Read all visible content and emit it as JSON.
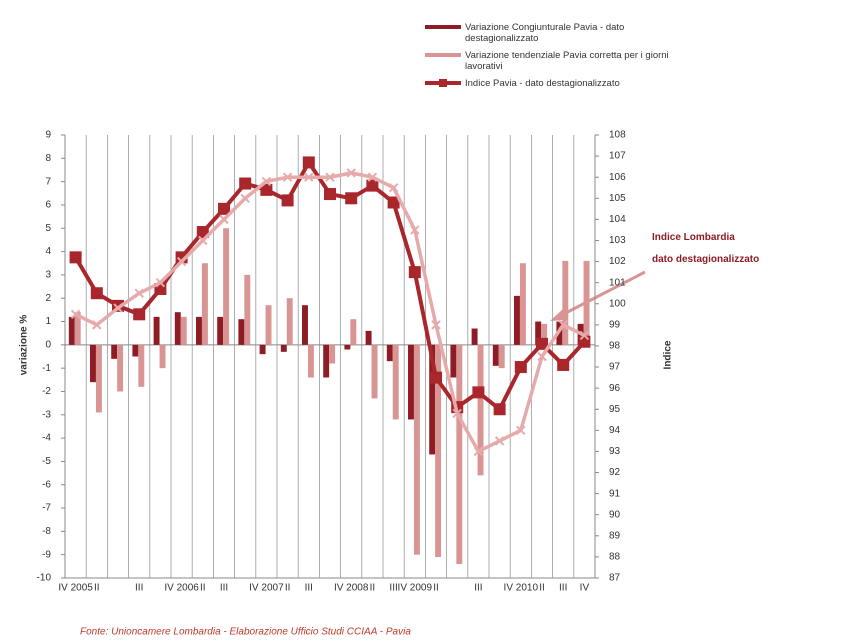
{
  "chart_data": {
    "type": "bar-line",
    "categories": [
      "IV 2005",
      "II",
      null,
      "III",
      null,
      "IV 2006",
      "II",
      "III",
      null,
      "IV 2007",
      "II",
      "III",
      null,
      "IV 2008",
      "II",
      "III",
      "IV 2009",
      "II",
      null,
      "III",
      null,
      "IV 2010",
      "II",
      "III",
      "IV"
    ],
    "series": [
      {
        "name": "Variazione Congiunturale Pavia - dato destagionalizzato",
        "type": "bar",
        "color": "#8e1c24",
        "values": [
          1.2,
          -1.6,
          -0.6,
          -0.5,
          1.2,
          1.4,
          1.2,
          1.2,
          1.1,
          -0.4,
          -0.3,
          1.7,
          -1.4,
          -0.2,
          0.6,
          -0.7,
          -3.2,
          -4.7,
          -1.4,
          0.7,
          -0.9,
          2.1,
          1.0,
          1.0,
          0.9
        ]
      },
      {
        "name": "Variazione tendenziale Pavia corretta per i giorni lavorativi",
        "type": "bar",
        "color": "#d99494",
        "values": [
          1.4,
          -2.9,
          -2.0,
          -1.8,
          -1.0,
          1.2,
          3.5,
          5.0,
          3.0,
          1.7,
          2.0,
          -1.4,
          -0.8,
          1.1,
          -2.3,
          -3.2,
          -9.0,
          -9.1,
          -9.4,
          -5.6,
          -1.0,
          3.5,
          0.9,
          3.6,
          3.6
        ]
      },
      {
        "name": "Indice Pavia - dato destagionalizzato",
        "type": "line",
        "axis": "y2",
        "color": "#a8262c",
        "marker": "square",
        "values": [
          102.2,
          100.5,
          99.9,
          99.5,
          100.7,
          102.2,
          103.4,
          104.5,
          105.7,
          105.4,
          104.9,
          106.7,
          105.2,
          105.0,
          105.6,
          104.8,
          101.5,
          96.5,
          95.1,
          95.8,
          95.0,
          97.0,
          98.1,
          97.1,
          98.2
        ]
      },
      {
        "type": "line",
        "axis": "y2",
        "color": "#e6aaaa",
        "marker": "x",
        "legend": false,
        "values": [
          99.5,
          99.0,
          99.8,
          100.5,
          101.0,
          102.0,
          103.0,
          104.0,
          105.0,
          105.8,
          106.0,
          106.0,
          106.0,
          106.2,
          106.0,
          105.5,
          103.5,
          99.0,
          94.8,
          93.0,
          93.5,
          94.0,
          97.5,
          99.0,
          98.5
        ]
      }
    ],
    "ylabel": "variazione %",
    "y2label": "Indice",
    "ylim": [
      -10,
      9
    ],
    "yticks": [
      -10,
      -9,
      -8,
      -7,
      -6,
      -5,
      -4,
      -3,
      -2,
      -1,
      0,
      1,
      2,
      3,
      4,
      5,
      6,
      7,
      8,
      9
    ],
    "y2lim": [
      87,
      108
    ],
    "y2ticks": [
      87,
      88,
      89,
      90,
      91,
      92,
      93,
      94,
      95,
      96,
      97,
      98,
      99,
      100,
      101,
      102,
      103,
      104,
      105,
      106,
      107,
      108
    ],
    "annotation": {
      "text": [
        "Indice Lombardia",
        "dato destagionalizzato"
      ],
      "color": "#8e1c24"
    },
    "source": "Fonte: Unioncamere Lombardia - Elaborazione Ufficio Studi CCIAA - Pavia"
  }
}
